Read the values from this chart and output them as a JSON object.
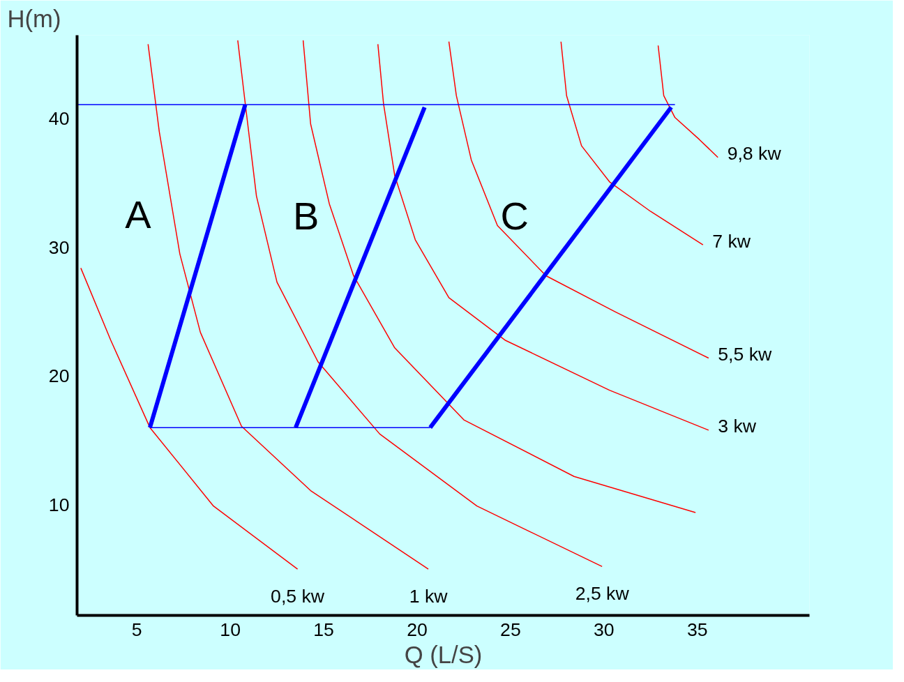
{
  "chart_data": {
    "type": "line",
    "xlabel": "Q (L/S)",
    "ylabel": "H(m)",
    "xlim": [
      1.8,
      41
    ],
    "ylim": [
      1.4,
      46.5
    ],
    "xticks": [
      5,
      10,
      15,
      20,
      25,
      30,
      35
    ],
    "yticks": [
      10,
      20,
      30,
      40
    ],
    "grid": false,
    "legend": false,
    "marker": "none",
    "line_style": "solid",
    "series": [
      {
        "name": "0,5 kw",
        "color": "#ff0000",
        "x": [
          2.0,
          3.6,
          5.7,
          9.1,
          13.6
        ],
        "values": [
          28.4,
          22.8,
          16.0,
          9.9,
          5.0
        ]
      },
      {
        "name": "1 kw",
        "color": "#ff0000",
        "x": [
          5.6,
          6.2,
          7.3,
          8.4,
          10.6,
          14.3,
          20.6
        ],
        "values": [
          45.8,
          39.0,
          29.5,
          23.4,
          16.1,
          11.1,
          5.0
        ]
      },
      {
        "name": "2,5 kw",
        "color": "#ff0000",
        "x": [
          10.4,
          10.8,
          11.4,
          12.5,
          14.7,
          18.0,
          23.2,
          29.9
        ],
        "values": [
          46.1,
          41.2,
          34.0,
          27.3,
          21.1,
          15.5,
          9.9,
          5.2
        ]
      },
      {
        "color": "#ff0000",
        "x": [
          13.9,
          14.3,
          15.3,
          16.6,
          18.8,
          22.5,
          28.4,
          34.9
        ],
        "values": [
          46.1,
          39.6,
          33.4,
          27.8,
          22.2,
          16.6,
          12.2,
          9.4
        ]
      },
      {
        "name": "3 kw",
        "color": "#ff0000",
        "x": [
          17.9,
          18.2,
          18.8,
          19.9,
          21.7,
          24.7,
          30.3,
          35.6
        ],
        "values": [
          45.8,
          41.2,
          35.6,
          30.6,
          26.1,
          22.8,
          18.9,
          15.8
        ]
      },
      {
        "name": "5,5 kw",
        "color": "#ff0000",
        "x": [
          21.7,
          22.1,
          22.9,
          24.3,
          26.9,
          30.6,
          35.6
        ],
        "values": [
          46.0,
          41.8,
          36.8,
          31.7,
          27.8,
          25.0,
          21.4
        ]
      },
      {
        "name": "7 kw",
        "color": "#ff0000",
        "x": [
          27.7,
          28.0,
          28.8,
          30.3,
          32.5,
          35.3
        ],
        "values": [
          46.0,
          41.8,
          37.9,
          35.1,
          32.8,
          30.2
        ]
      },
      {
        "name": "9,8 kw",
        "color": "#ff0000",
        "x": [
          32.9,
          33.2,
          33.8,
          35.1,
          36.1
        ],
        "values": [
          45.7,
          41.8,
          40.1,
          38.4,
          37.0
        ]
      },
      {
        "color": "#0000ff",
        "x": [
          1.8,
          33.8
        ],
        "values": [
          41.1,
          41.1
        ]
      },
      {
        "color": "#0000ff",
        "x": [
          5.7,
          20.7
        ],
        "values": [
          16.0,
          16.0
        ]
      },
      {
        "color": "#0000ff",
        "x": [
          5.7,
          10.8
        ],
        "values": [
          16.0,
          41.1
        ]
      },
      {
        "color": "#0000ff",
        "x": [
          13.5,
          20.4
        ],
        "values": [
          16.0,
          40.9
        ]
      },
      {
        "color": "#0000ff",
        "x": [
          20.7,
          33.6
        ],
        "values": [
          16.0,
          40.9
        ]
      }
    ],
    "annotations": [
      "A",
      "B",
      "C"
    ]
  }
}
